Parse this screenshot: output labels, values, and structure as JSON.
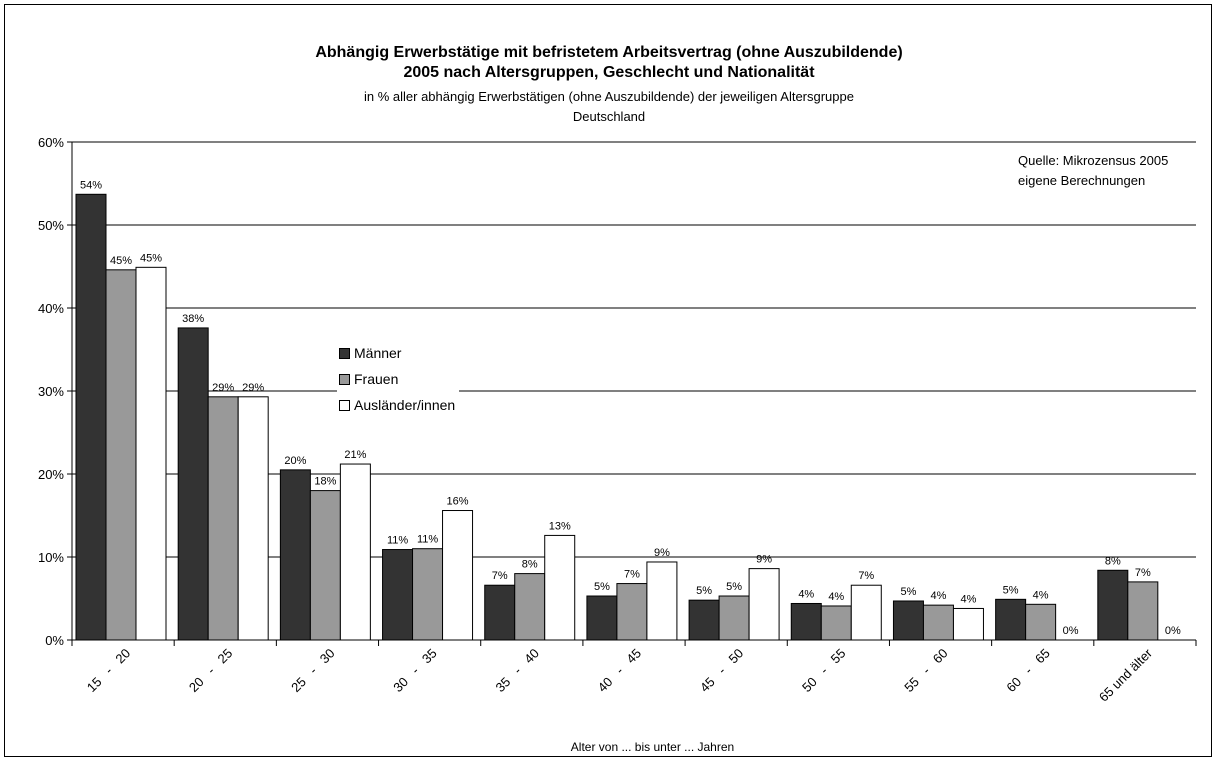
{
  "chart_data": {
    "type": "bar",
    "title": "Abhängig Erwerbstätige mit befristetem Arbeitsvertrag (ohne Auszubildende)",
    "title2": "2005 nach Altersgruppen, Geschlecht und Nationalität",
    "subtitle": "in % aller abhängig Erwerbstätigen (ohne Auszubildende) der jeweiligen Altersgruppe",
    "subtitle2": "Deutschland",
    "source_line1": "Quelle: Mikrozensus 2005",
    "source_line2": "eigene Berechnungen",
    "xlabel": "Alter von ... bis unter ... Jahren",
    "ylim": [
      0,
      60
    ],
    "yticks": [
      0,
      10,
      20,
      30,
      40,
      50,
      60
    ],
    "ytick_labels": [
      "0%",
      "10%",
      "20%",
      "30%",
      "40%",
      "50%",
      "60%"
    ],
    "grid": true,
    "legend_position": "center-left",
    "categories": [
      "15   -   20",
      "20   -   25",
      "25   -   30",
      "30   -   35",
      "35   -   40",
      "40   -   45",
      "45   -   50",
      "50   -   55",
      "55   -   60",
      "60   -   65",
      "65 und älter"
    ],
    "series": [
      {
        "name": "Männer",
        "color": "#333333",
        "values": [
          53.7,
          37.6,
          20.5,
          10.9,
          6.6,
          5.3,
          4.8,
          4.4,
          4.7,
          4.9,
          8.4
        ],
        "labels": [
          "54%",
          "38%",
          "20%",
          "11%",
          "7%",
          "5%",
          "5%",
          "4%",
          "5%",
          "5%",
          "8%"
        ]
      },
      {
        "name": "Frauen",
        "color": "#999999",
        "values": [
          44.6,
          29.3,
          18.0,
          11.0,
          8.0,
          6.8,
          5.3,
          4.1,
          4.2,
          4.3,
          7.0
        ],
        "labels": [
          "45%",
          "29%",
          "18%",
          "11%",
          "8%",
          "7%",
          "5%",
          "4%",
          "4%",
          "4%",
          "7%"
        ]
      },
      {
        "name": "Ausländer/innen",
        "color": "#ffffff",
        "values": [
          44.9,
          29.3,
          21.2,
          15.6,
          12.6,
          9.4,
          8.6,
          6.6,
          3.8,
          0,
          0
        ],
        "labels": [
          "45%",
          "29%",
          "21%",
          "16%",
          "13%",
          "9%",
          "9%",
          "7%",
          "4%",
          "0%",
          "0%"
        ]
      }
    ]
  }
}
